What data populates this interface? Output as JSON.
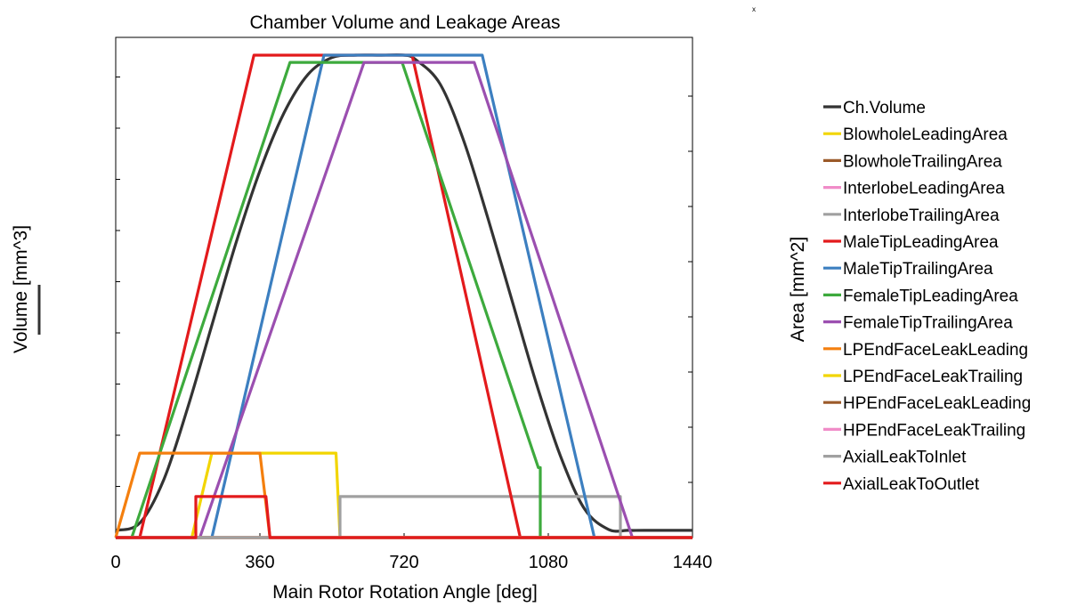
{
  "chart_data": {
    "type": "line",
    "title": "Chamber Volume and Leakage Areas",
    "xlabel": "Main Rotor Rotation Angle [deg]",
    "ylabel_left": "Volume [mm^3]",
    "ylabel_right": "Area [mm^2]",
    "corner_text": "x",
    "xlim": [
      0,
      1440
    ],
    "xticks": [
      "0",
      "360",
      "720",
      "1080",
      "1440"
    ],
    "xtick_values": [
      0,
      360,
      720,
      1080,
      1440
    ],
    "ylim": [
      0,
      1
    ],
    "grid": false,
    "legend_position": "right",
    "series": [
      {
        "name": "Ch.Volume",
        "color": "#333333",
        "shape": "smooth",
        "x": [
          0,
          60,
          120,
          180,
          240,
          300,
          360,
          420,
          480,
          540,
          600,
          660,
          720,
          750,
          810,
          870,
          930,
          990,
          1050,
          1110,
          1170,
          1230,
          1280,
          1320,
          1440
        ],
        "y": [
          0.015,
          0.03,
          0.12,
          0.27,
          0.44,
          0.61,
          0.76,
          0.88,
          0.96,
          0.995,
          1.0,
          1.0,
          1.0,
          0.99,
          0.94,
          0.82,
          0.66,
          0.49,
          0.32,
          0.17,
          0.06,
          0.017,
          0.015,
          0.015,
          0.015
        ]
      },
      {
        "name": "BlowholeLeadingArea",
        "color": "#f2d500",
        "shape": "line",
        "x": [
          0,
          190,
          240,
          550,
          560,
          1440
        ],
        "y": [
          0,
          0,
          0.175,
          0.175,
          0,
          0
        ]
      },
      {
        "name": "BlowholeTrailingArea",
        "color": "#9b5a2a",
        "shape": "line",
        "x": [
          0,
          1440
        ],
        "y": [
          0,
          0
        ]
      },
      {
        "name": "InterlobeLeadingArea",
        "color": "#f08cc8",
        "shape": "line",
        "x": [
          0,
          1440
        ],
        "y": [
          0,
          0
        ]
      },
      {
        "name": "InterlobeTrailingArea",
        "color": "#a0a0a0",
        "shape": "line",
        "x": [
          0,
          560,
          560,
          1260,
          1260,
          1440
        ],
        "y": [
          0,
          0,
          0.085,
          0.085,
          0,
          0
        ]
      },
      {
        "name": "MaleTipLeadingArea",
        "color": "#e31a1c",
        "shape": "line",
        "x": [
          0,
          60,
          345,
          740,
          1010,
          1440
        ],
        "y": [
          0,
          0,
          1.0,
          1.0,
          0,
          0
        ]
      },
      {
        "name": "MaleTipTrailingArea",
        "color": "#3c7fc0",
        "shape": "line",
        "x": [
          0,
          240,
          520,
          915,
          1195,
          1440
        ],
        "y": [
          0,
          0,
          1.0,
          1.0,
          0,
          0
        ]
      },
      {
        "name": "FemaleTipLeadingArea",
        "color": "#3daa3d",
        "shape": "line",
        "x": [
          0,
          40,
          435,
          715,
          1055,
          1060,
          1060,
          1440
        ],
        "y": [
          0,
          0,
          0.985,
          0.985,
          0.145,
          0.145,
          0,
          0
        ]
      },
      {
        "name": "FemaleTipTrailingArea",
        "color": "#9b4fb0",
        "shape": "line",
        "x": [
          0,
          210,
          620,
          895,
          1290,
          1440
        ],
        "y": [
          0,
          0,
          0.985,
          0.985,
          0,
          0
        ]
      },
      {
        "name": "LPEndFaceLeakLeading",
        "color": "#f47f0e",
        "shape": "line",
        "x": [
          0,
          60,
          360,
          385,
          1440
        ],
        "y": [
          0,
          0.175,
          0.175,
          0,
          0
        ]
      },
      {
        "name": "LPEndFaceLeakTrailing",
        "color": "#f2d500",
        "shape": "line",
        "x": [
          0,
          1440
        ],
        "y": [
          0,
          0
        ]
      },
      {
        "name": "HPEndFaceLeakLeading",
        "color": "#9b5a2a",
        "shape": "line",
        "x": [
          0,
          1440
        ],
        "y": [
          0,
          0
        ]
      },
      {
        "name": "HPEndFaceLeakTrailing",
        "color": "#f08cc8",
        "shape": "line",
        "x": [
          0,
          1440
        ],
        "y": [
          0,
          0
        ]
      },
      {
        "name": "AxialLeakToInlet",
        "color": "#a0a0a0",
        "shape": "line",
        "x": [
          0,
          1440
        ],
        "y": [
          0,
          0
        ]
      },
      {
        "name": "AxialLeakToOutlet",
        "color": "#e31a1c",
        "shape": "line",
        "x": [
          0,
          200,
          200,
          375,
          385,
          1440
        ],
        "y": [
          0,
          0,
          0.085,
          0.085,
          0,
          0
        ]
      }
    ]
  }
}
